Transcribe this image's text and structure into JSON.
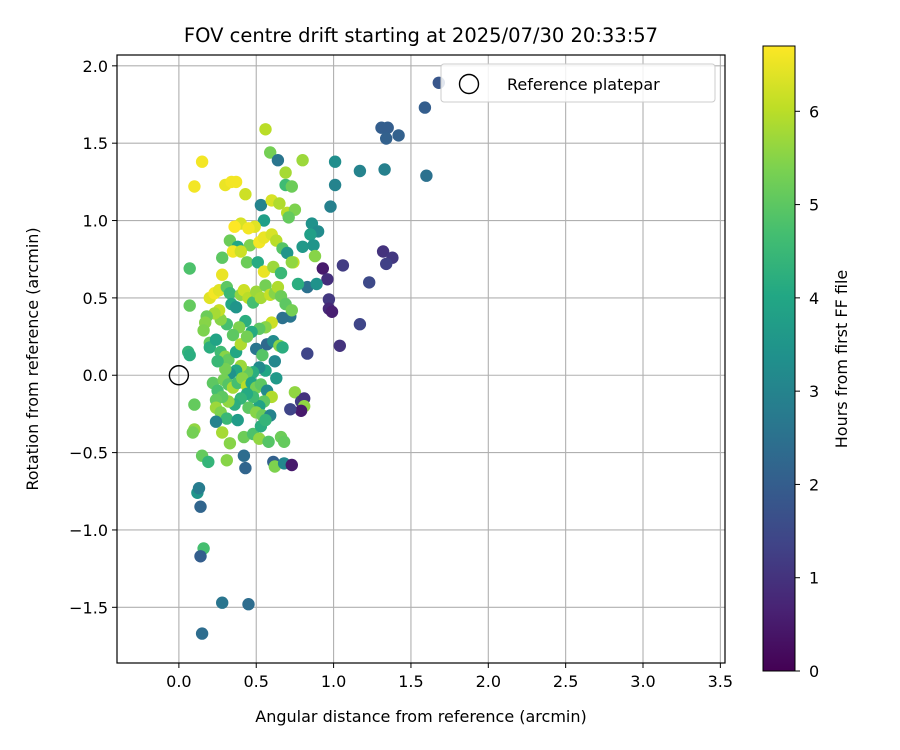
{
  "chart_data": {
    "type": "scatter",
    "title": "FOV centre drift starting at 2025/07/30 20:33:57",
    "xlabel": "Angular distance from reference (arcmin)",
    "ylabel": "Rotation from reference (arcmin)",
    "xlim": [
      -0.4,
      3.53
    ],
    "ylim": [
      -1.86,
      2.07
    ],
    "x_ticks": [
      0.0,
      0.5,
      1.0,
      1.5,
      2.0,
      2.5,
      3.0,
      3.5
    ],
    "x_tick_labels": [
      "0.0",
      "0.5",
      "1.0",
      "1.5",
      "2.0",
      "2.5",
      "3.0",
      "3.5"
    ],
    "y_ticks": [
      -1.5,
      -1.0,
      -0.5,
      0.0,
      0.5,
      1.0,
      1.5,
      2.0
    ],
    "y_tick_labels": [
      "−1.5",
      "−1.0",
      "−0.5",
      "0.0",
      "0.5",
      "1.0",
      "1.5",
      "2.0"
    ],
    "grid": true,
    "legend": {
      "position": "top-right",
      "entries": [
        {
          "label": "Reference platepar",
          "marker": "open-circle"
        }
      ]
    },
    "reference_point": {
      "x": 0.0,
      "y": 0.0
    },
    "colorbar": {
      "label": "Hours from first FF file",
      "colormap": "viridis",
      "range": [
        0,
        6.7
      ],
      "ticks": [
        0,
        1,
        2,
        3,
        4,
        5,
        6
      ],
      "tick_labels": [
        "0",
        "1",
        "2",
        "3",
        "4",
        "5",
        "6"
      ]
    },
    "points": [
      [
        1.68,
        1.89,
        1.8
      ],
      [
        1.59,
        1.73,
        2.0
      ],
      [
        1.31,
        1.6,
        2.0
      ],
      [
        1.35,
        1.6,
        2.0
      ],
      [
        1.42,
        1.55,
        2.1
      ],
      [
        1.34,
        1.53,
        2.1
      ],
      [
        1.6,
        1.29,
        2.5
      ],
      [
        1.33,
        1.33,
        2.9
      ],
      [
        1.17,
        1.32,
        3.0
      ],
      [
        1.01,
        1.38,
        3.3
      ],
      [
        1.01,
        1.23,
        3.0
      ],
      [
        0.98,
        1.09,
        2.9
      ],
      [
        0.56,
        1.59,
        6.0
      ],
      [
        0.59,
        1.44,
        5.3
      ],
      [
        0.64,
        1.39,
        2.6
      ],
      [
        0.8,
        1.39,
        5.7
      ],
      [
        0.15,
        1.38,
        6.6
      ],
      [
        0.1,
        1.22,
        6.6
      ],
      [
        0.3,
        1.23,
        6.5
      ],
      [
        0.34,
        1.25,
        6.6
      ],
      [
        0.37,
        1.25,
        6.6
      ],
      [
        0.69,
        1.31,
        5.8
      ],
      [
        0.69,
        1.23,
        4.6
      ],
      [
        0.73,
        1.22,
        5.2
      ],
      [
        0.43,
        1.17,
        6.2
      ],
      [
        0.53,
        1.1,
        3.0
      ],
      [
        0.6,
        1.13,
        6.3
      ],
      [
        0.65,
        1.11,
        5.9
      ],
      [
        0.7,
        1.05,
        6.0
      ],
      [
        0.75,
        1.07,
        5.4
      ],
      [
        0.71,
        1.02,
        5.1
      ],
      [
        0.86,
        0.98,
        3.4
      ],
      [
        0.9,
        0.93,
        3.2
      ],
      [
        0.85,
        0.91,
        3.8
      ],
      [
        0.55,
        1.0,
        3.8
      ],
      [
        0.49,
        0.96,
        6.4
      ],
      [
        0.4,
        0.98,
        6.3
      ],
      [
        0.45,
        0.95,
        6.6
      ],
      [
        0.36,
        0.96,
        6.7
      ],
      [
        0.33,
        0.87,
        5.2
      ],
      [
        0.38,
        0.83,
        4.0
      ],
      [
        0.46,
        0.84,
        5.4
      ],
      [
        0.52,
        0.86,
        6.6
      ],
      [
        0.55,
        0.89,
        6.5
      ],
      [
        0.6,
        0.91,
        6.3
      ],
      [
        0.63,
        0.87,
        6.0
      ],
      [
        0.67,
        0.82,
        4.9
      ],
      [
        0.7,
        0.79,
        3.5
      ],
      [
        0.74,
        0.73,
        6.1
      ],
      [
        0.8,
        0.83,
        3.6
      ],
      [
        0.87,
        0.84,
        3.5
      ],
      [
        0.88,
        0.77,
        5.5
      ],
      [
        0.93,
        0.69,
        0.5
      ],
      [
        0.96,
        0.62,
        0.9
      ],
      [
        1.06,
        0.71,
        1.2
      ],
      [
        1.32,
        0.8,
        1.0
      ],
      [
        1.38,
        0.76,
        1.1
      ],
      [
        1.34,
        0.72,
        1.3
      ],
      [
        1.23,
        0.6,
        1.5
      ],
      [
        0.97,
        0.49,
        1.1
      ],
      [
        0.97,
        0.43,
        0.8
      ],
      [
        0.99,
        0.41,
        0.6
      ],
      [
        1.17,
        0.33,
        1.4
      ],
      [
        1.04,
        0.19,
        1.0
      ],
      [
        0.83,
        0.14,
        1.4
      ],
      [
        0.83,
        0.57,
        2.5
      ],
      [
        0.89,
        0.59,
        3.4
      ],
      [
        0.35,
        0.8,
        6.6
      ],
      [
        0.4,
        0.8,
        6.2
      ],
      [
        0.28,
        0.76,
        5.0
      ],
      [
        0.44,
        0.73,
        5.2
      ],
      [
        0.51,
        0.73,
        4.1
      ],
      [
        0.55,
        0.67,
        6.5
      ],
      [
        0.61,
        0.7,
        5.7
      ],
      [
        0.66,
        0.66,
        4.5
      ],
      [
        0.73,
        0.73,
        5.6
      ],
      [
        0.77,
        0.59,
        4.2
      ],
      [
        0.2,
        0.5,
        6.4
      ],
      [
        0.23,
        0.53,
        6.6
      ],
      [
        0.26,
        0.55,
        6.4
      ],
      [
        0.28,
        0.65,
        6.5
      ],
      [
        0.31,
        0.57,
        5.0
      ],
      [
        0.33,
        0.53,
        4.5
      ],
      [
        0.34,
        0.46,
        4.0
      ],
      [
        0.37,
        0.44,
        3.5
      ],
      [
        0.4,
        0.52,
        5.6
      ],
      [
        0.42,
        0.55,
        6.2
      ],
      [
        0.45,
        0.5,
        6.0
      ],
      [
        0.48,
        0.47,
        4.7
      ],
      [
        0.5,
        0.54,
        5.7
      ],
      [
        0.53,
        0.5,
        5.8
      ],
      [
        0.56,
        0.58,
        5.3
      ],
      [
        0.59,
        0.52,
        6.1
      ],
      [
        0.62,
        0.53,
        5.5
      ],
      [
        0.64,
        0.57,
        5.9
      ],
      [
        0.66,
        0.51,
        5.2
      ],
      [
        0.69,
        0.46,
        5.0
      ],
      [
        0.72,
        0.38,
        2.6
      ],
      [
        0.73,
        0.42,
        5.3
      ],
      [
        0.67,
        0.37,
        2.5
      ],
      [
        0.6,
        0.34,
        6.2
      ],
      [
        0.56,
        0.31,
        5.5
      ],
      [
        0.52,
        0.3,
        5.0
      ],
      [
        0.47,
        0.28,
        4.1
      ],
      [
        0.43,
        0.35,
        4.2
      ],
      [
        0.39,
        0.31,
        5.4
      ],
      [
        0.35,
        0.26,
        5.0
      ],
      [
        0.31,
        0.33,
        4.7
      ],
      [
        0.27,
        0.36,
        5.5
      ],
      [
        0.26,
        0.42,
        6.1
      ],
      [
        0.23,
        0.4,
        5.8
      ],
      [
        0.18,
        0.38,
        5.2
      ],
      [
        0.17,
        0.34,
        5.5
      ],
      [
        0.16,
        0.29,
        5.4
      ],
      [
        0.2,
        0.21,
        5.1
      ],
      [
        0.2,
        0.18,
        4.2
      ],
      [
        0.24,
        0.23,
        3.9
      ],
      [
        0.27,
        0.15,
        4.6
      ],
      [
        0.3,
        0.12,
        5.5
      ],
      [
        0.32,
        0.1,
        5.1
      ],
      [
        0.37,
        0.15,
        4.0
      ],
      [
        0.4,
        0.2,
        5.9
      ],
      [
        0.44,
        0.25,
        5.3
      ],
      [
        0.5,
        0.17,
        2.6
      ],
      [
        0.54,
        0.13,
        4.9
      ],
      [
        0.57,
        0.2,
        2.3
      ],
      [
        0.61,
        0.22,
        3.2
      ],
      [
        0.65,
        0.19,
        5.5
      ],
      [
        0.67,
        0.18,
        4.2
      ],
      [
        0.62,
        0.09,
        3.1
      ],
      [
        0.56,
        0.03,
        4.0
      ],
      [
        0.52,
        0.05,
        3.2
      ],
      [
        0.48,
        0.02,
        4.2
      ],
      [
        0.44,
        0.02,
        5.1
      ],
      [
        0.4,
        0.06,
        5.7
      ],
      [
        0.37,
        0.03,
        4.0
      ],
      [
        0.33,
        0.01,
        3.4
      ],
      [
        0.3,
        0.04,
        5.3
      ],
      [
        0.25,
        0.09,
        4.5
      ],
      [
        0.07,
        0.69,
        4.8
      ],
      [
        0.07,
        0.45,
        5.1
      ],
      [
        0.06,
        0.15,
        4.4
      ],
      [
        0.07,
        0.13,
        4.2
      ],
      [
        0.22,
        -0.05,
        5.0
      ],
      [
        0.25,
        -0.1,
        4.7
      ],
      [
        0.29,
        -0.03,
        5.3
      ],
      [
        0.32,
        -0.06,
        4.9
      ],
      [
        0.35,
        -0.08,
        5.8
      ],
      [
        0.38,
        -0.05,
        4.7
      ],
      [
        0.41,
        -0.02,
        5.5
      ],
      [
        0.44,
        -0.07,
        6.0
      ],
      [
        0.47,
        -0.05,
        4.0
      ],
      [
        0.5,
        -0.08,
        5.3
      ],
      [
        0.53,
        -0.06,
        5.0
      ],
      [
        0.57,
        -0.1,
        3.2
      ],
      [
        0.63,
        -0.02,
        3.6
      ],
      [
        0.75,
        -0.11,
        5.6
      ],
      [
        0.79,
        -0.17,
        1.2
      ],
      [
        0.81,
        -0.15,
        1.0
      ],
      [
        0.81,
        -0.2,
        5.6
      ],
      [
        0.79,
        -0.23,
        0.5
      ],
      [
        0.72,
        -0.22,
        1.4
      ],
      [
        0.6,
        -0.14,
        5.9
      ],
      [
        0.55,
        -0.17,
        5.0
      ],
      [
        0.52,
        -0.2,
        3.9
      ],
      [
        0.48,
        -0.14,
        4.6
      ],
      [
        0.44,
        -0.12,
        4.1
      ],
      [
        0.4,
        -0.15,
        4.4
      ],
      [
        0.36,
        -0.19,
        4.2
      ],
      [
        0.32,
        -0.17,
        5.6
      ],
      [
        0.28,
        -0.14,
        5.0
      ],
      [
        0.24,
        -0.16,
        5.1
      ],
      [
        0.24,
        -0.21,
        5.7
      ],
      [
        0.27,
        -0.24,
        5.4
      ],
      [
        0.31,
        -0.28,
        4.5
      ],
      [
        0.38,
        -0.29,
        3.7
      ],
      [
        0.45,
        -0.21,
        5.0
      ],
      [
        0.5,
        -0.24,
        5.5
      ],
      [
        0.54,
        -0.26,
        5.2
      ],
      [
        0.59,
        -0.26,
        3.0
      ],
      [
        0.1,
        -0.19,
        5.1
      ],
      [
        0.1,
        -0.35,
        5.6
      ],
      [
        0.09,
        -0.37,
        5.3
      ],
      [
        0.24,
        -0.3,
        3.0
      ],
      [
        0.28,
        -0.37,
        5.8
      ],
      [
        0.33,
        -0.44,
        5.5
      ],
      [
        0.42,
        -0.4,
        5.2
      ],
      [
        0.48,
        -0.38,
        4.8
      ],
      [
        0.52,
        -0.41,
        5.6
      ],
      [
        0.58,
        -0.43,
        4.9
      ],
      [
        0.66,
        -0.4,
        5.2
      ],
      [
        0.68,
        -0.43,
        5.1
      ],
      [
        0.53,
        -0.33,
        4.2
      ],
      [
        0.56,
        -0.29,
        4.4
      ],
      [
        0.15,
        -0.52,
        5.1
      ],
      [
        0.19,
        -0.56,
        4.4
      ],
      [
        0.31,
        -0.55,
        5.5
      ],
      [
        0.42,
        -0.52,
        2.4
      ],
      [
        0.43,
        -0.6,
        2.2
      ],
      [
        0.61,
        -0.56,
        2.1
      ],
      [
        0.62,
        -0.59,
        5.4
      ],
      [
        0.68,
        -0.57,
        3.1
      ],
      [
        0.73,
        -0.58,
        0.5
      ],
      [
        0.12,
        -0.76,
        3.5
      ],
      [
        0.13,
        -0.73,
        2.8
      ],
      [
        0.14,
        -0.85,
        2.2
      ],
      [
        0.16,
        -1.12,
        4.7
      ],
      [
        0.14,
        -1.17,
        2.0
      ],
      [
        0.28,
        -1.47,
        2.6
      ],
      [
        0.45,
        -1.48,
        2.4
      ],
      [
        0.15,
        -1.67,
        2.4
      ]
    ]
  }
}
